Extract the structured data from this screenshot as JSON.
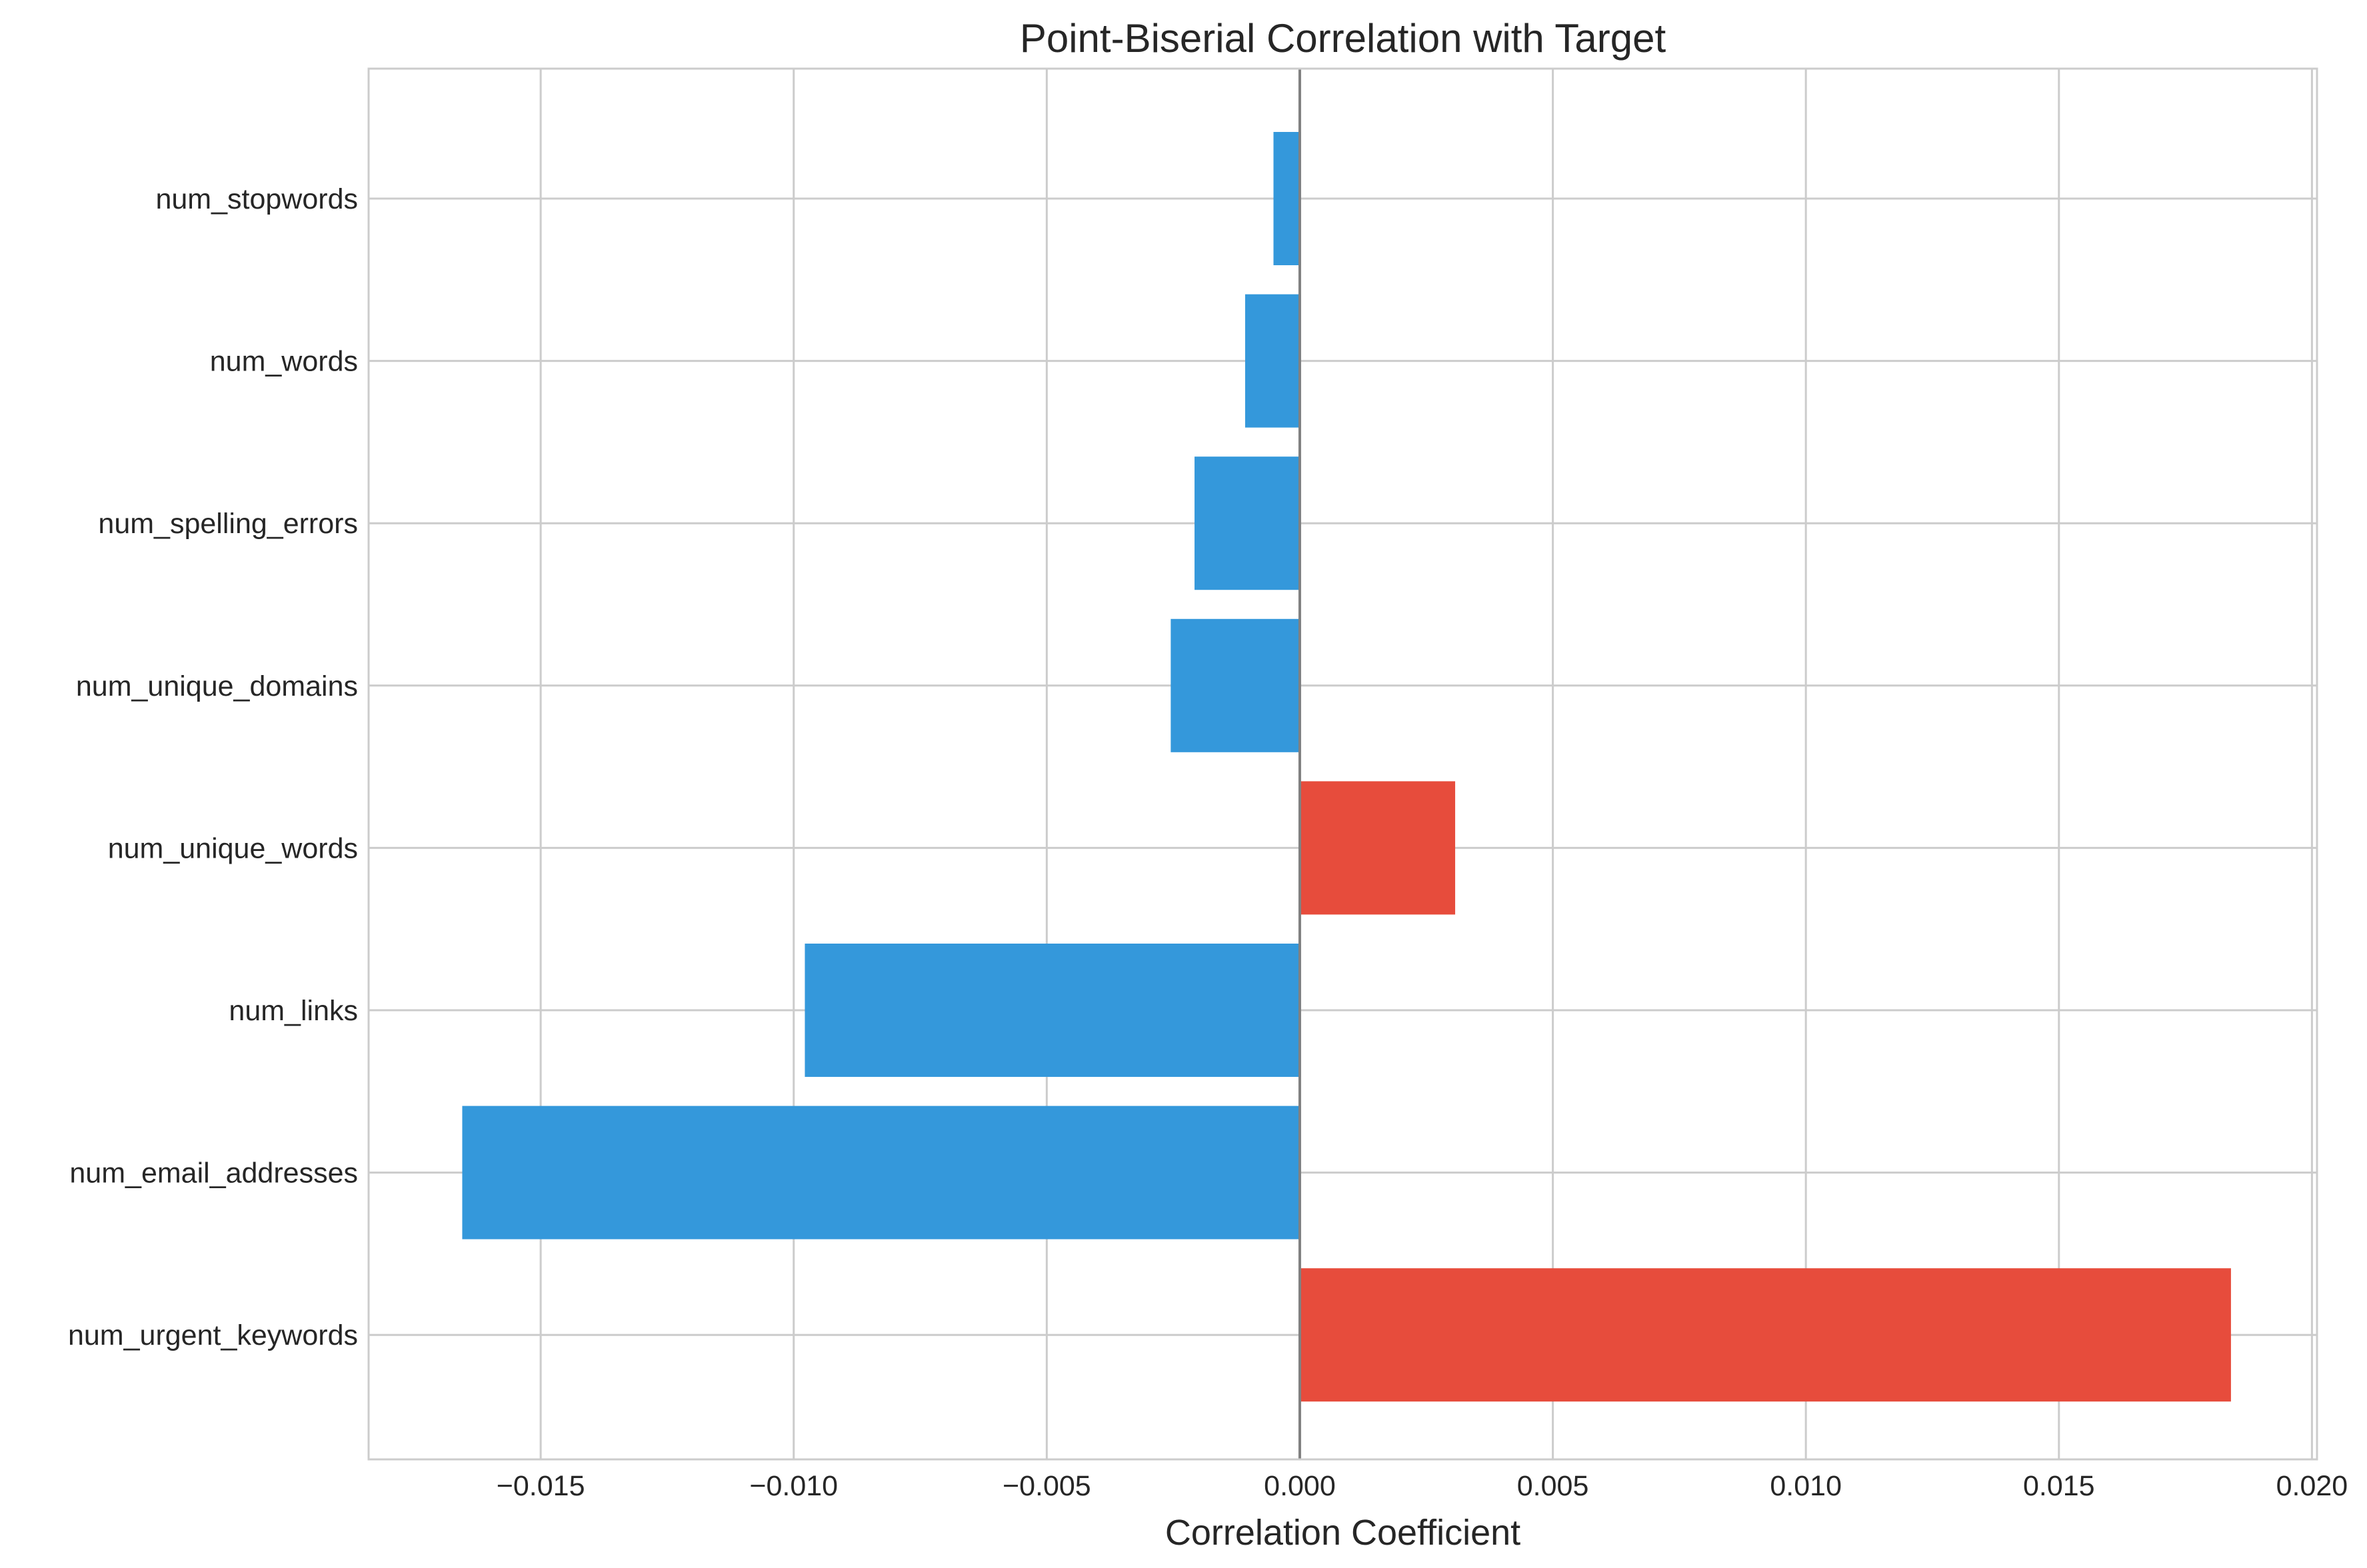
{
  "chart_data": {
    "type": "bar",
    "orientation": "horizontal",
    "title": "Point-Biserial Correlation with Target",
    "xlabel": "Correlation Coefficient",
    "ylabel": "",
    "xlim": [
      -0.0184,
      0.0201
    ],
    "xticks": [
      -0.015,
      -0.01,
      -0.005,
      0.0,
      0.005,
      0.01,
      0.015,
      0.02
    ],
    "xtick_labels": [
      "−0.015",
      "−0.010",
      "−0.005",
      "0.000",
      "0.005",
      "0.010",
      "0.015",
      "0.020"
    ],
    "categories": [
      "num_stopwords",
      "num_words",
      "num_spelling_errors",
      "num_unique_domains",
      "num_unique_words",
      "num_links",
      "num_email_addresses",
      "num_urgent_keywords"
    ],
    "values": [
      -0.00052,
      -0.00108,
      -0.00208,
      -0.00255,
      0.00307,
      -0.00978,
      -0.01655,
      0.0184
    ],
    "grid": true,
    "colors": {
      "positive": "#e74c3c",
      "negative": "#3498db"
    }
  }
}
